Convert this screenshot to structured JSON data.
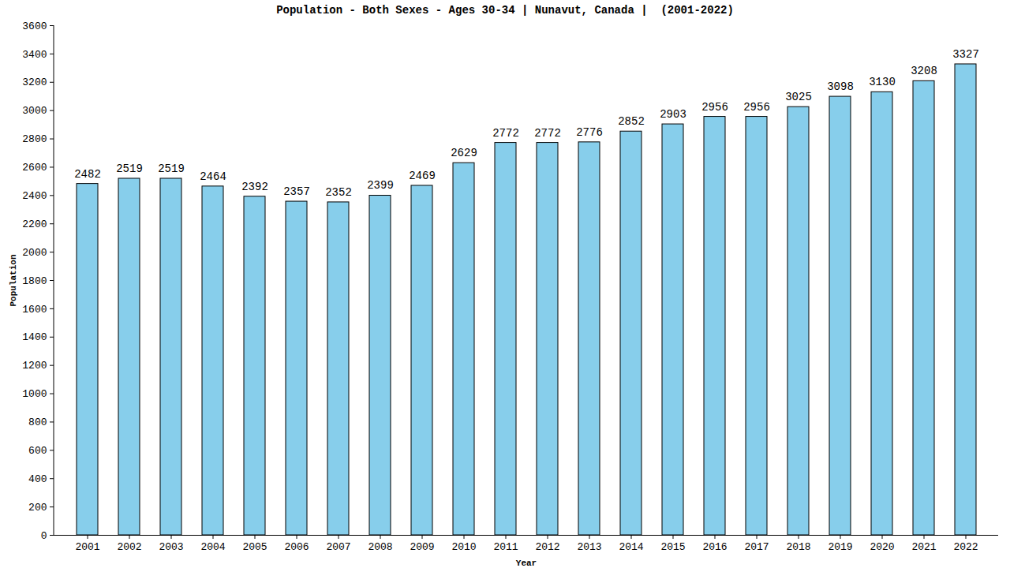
{
  "chart_data": {
    "type": "bar",
    "title": "Population - Both Sexes - Ages 30-34 | Nunavut, Canada |  (2001-2022)",
    "x_label": "Year",
    "y_label": "Population",
    "categories": [
      "2001",
      "2002",
      "2003",
      "2004",
      "2005",
      "2006",
      "2007",
      "2008",
      "2009",
      "2010",
      "2011",
      "2012",
      "2013",
      "2014",
      "2015",
      "2016",
      "2017",
      "2018",
      "2019",
      "2020",
      "2021",
      "2022"
    ],
    "values": [
      2482,
      2519,
      2519,
      2464,
      2392,
      2357,
      2352,
      2399,
      2469,
      2629,
      2772,
      2772,
      2776,
      2852,
      2903,
      2956,
      2956,
      3025,
      3098,
      3130,
      3208,
      3327
    ],
    "color": "#87ceeb",
    "ylim": [
      0,
      3600
    ],
    "yticks": [
      0,
      200,
      400,
      600,
      800,
      1000,
      1200,
      1400,
      1600,
      1800,
      2000,
      2200,
      2400,
      2600,
      2800,
      3000,
      3200,
      3400,
      3600
    ],
    "grid": false,
    "data_labels": true
  }
}
